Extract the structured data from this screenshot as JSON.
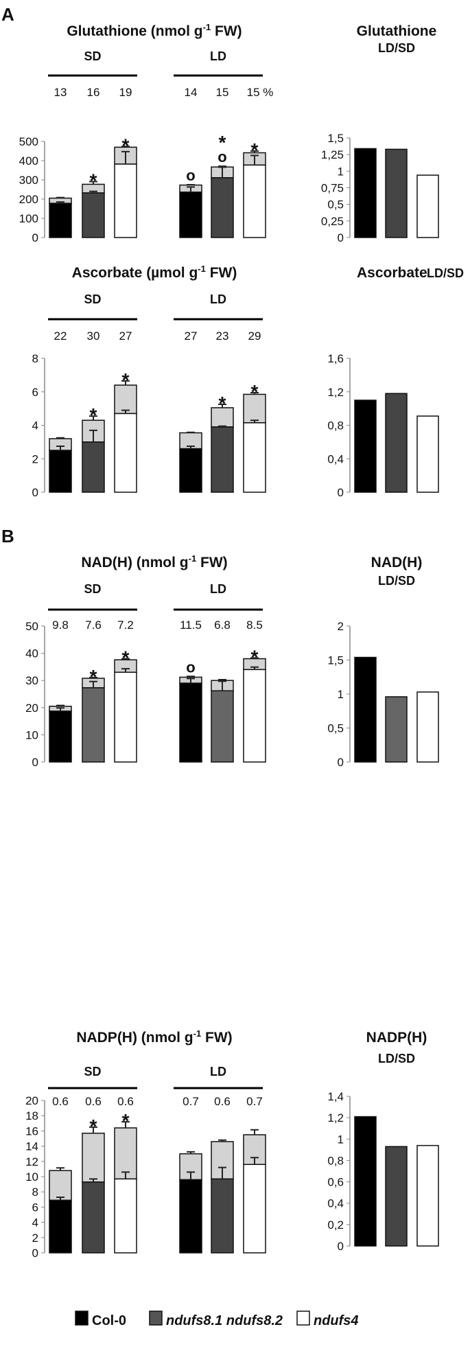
{
  "panels": [
    {
      "label": "A"
    },
    {
      "label": "B"
    }
  ],
  "legend": [
    {
      "name": "Col-0",
      "color": "#000000",
      "italic": false
    },
    {
      "name": "ndufs8.1 ndufs8.2",
      "color": "#555555",
      "italic": true
    },
    {
      "name": "ndufs4",
      "color": "#ffffff",
      "italic": true
    }
  ],
  "colors": {
    "oxidized_top": "#d3d3d3",
    "genotypes": [
      "#000000",
      "#454545",
      "#ffffff"
    ],
    "nad_mutant": "#666666"
  },
  "chart_data": [
    {
      "type": "bar",
      "stacked": true,
      "title": "Glutathione (nmol g-1 FW)",
      "title_main": "Glutathione (nmol g",
      "title_sup": "-1",
      "title_end": " FW)",
      "groups": [
        "SD",
        "LD"
      ],
      "group_annotations": [
        [
          "13",
          "16",
          "19"
        ],
        [
          "14",
          "15",
          "15 %"
        ]
      ],
      "ylim": [
        0,
        500
      ],
      "yticks": [
        "0",
        "100",
        "200",
        "300",
        "400",
        "500"
      ],
      "ytick_values": [
        0,
        100,
        200,
        300,
        400,
        500
      ],
      "series": [
        {
          "group": "SD",
          "bottom": [
            178,
            232,
            382
          ],
          "total": [
            205,
            277,
            470
          ],
          "bottom_err": [
            7,
            8,
            65
          ],
          "total_err": [
            3,
            14,
            4
          ]
        },
        {
          "group": "LD",
          "bottom": [
            236,
            311,
            377
          ],
          "total": [
            273,
            367,
            441
          ],
          "bottom_err": [
            27,
            55,
            50
          ],
          "total_err": [
            2,
            4,
            9
          ]
        }
      ],
      "markers": [
        [
          "",
          "*",
          "*"
        ],
        [
          "o",
          "* o",
          "*"
        ]
      ],
      "ratio": {
        "title": "Glutathione",
        "subtitle": "LD/SD",
        "values": [
          1.34,
          1.33,
          0.94
        ],
        "ylim": [
          0,
          1.5
        ],
        "yticks": [
          "0",
          "0,25",
          "0,5",
          "0,75",
          "1",
          "1,25",
          "1,5"
        ],
        "ytick_values": [
          0,
          0.25,
          0.5,
          0.75,
          1,
          1.25,
          1.5
        ]
      }
    },
    {
      "type": "bar",
      "stacked": true,
      "title": "Ascorbate (µmol g-1 FW)",
      "title_main": "Ascorbate (µmol g",
      "title_sup": "-1",
      "title_end": " FW)",
      "groups": [
        "SD",
        "LD"
      ],
      "group_annotations": [
        [
          "22",
          "30",
          "27"
        ],
        [
          "27",
          "23",
          "29"
        ]
      ],
      "ylim": [
        0,
        8
      ],
      "yticks": [
        "0",
        "2",
        "4",
        "6",
        "8"
      ],
      "ytick_values": [
        0,
        2,
        4,
        6,
        8
      ],
      "series": [
        {
          "group": "SD",
          "bottom": [
            2.5,
            3.0,
            4.7
          ],
          "total": [
            3.2,
            4.3,
            6.4
          ],
          "bottom_err": [
            0.25,
            0.7,
            0.2
          ],
          "total_err": [
            0.05,
            0.25,
            0.25
          ]
        },
        {
          "group": "LD",
          "bottom": [
            2.6,
            3.9,
            4.15
          ],
          "total": [
            3.55,
            5.05,
            5.85
          ],
          "bottom_err": [
            0.15,
            0.05,
            0.15
          ],
          "total_err": [
            0.03,
            0.2,
            0.1
          ]
        }
      ],
      "markers": [
        [
          "",
          "*",
          "*"
        ],
        [
          "",
          "*",
          "*"
        ]
      ],
      "ratio": {
        "title": "Ascorbate",
        "subtitle": "LD/SD",
        "values": [
          1.1,
          1.18,
          0.91
        ],
        "ylim": [
          0,
          1.6
        ],
        "yticks": [
          "0",
          "0,4",
          "0,8",
          "1,2",
          "1,6"
        ],
        "ytick_values": [
          0,
          0.4,
          0.8,
          1.2,
          1.6
        ]
      }
    },
    {
      "type": "bar",
      "stacked": true,
      "title": "NAD(H) (nmol g-1 FW)",
      "title_main": "NAD(H) (nmol g",
      "title_sup": "-1",
      "title_end": " FW)",
      "groups": [
        "SD",
        "LD"
      ],
      "group_annotations": [
        [
          "9.8",
          "7.6",
          "7.2"
        ],
        [
          "11.5",
          "6.8",
          "8.5"
        ]
      ],
      "ylim": [
        0,
        50
      ],
      "yticks": [
        "0",
        "10",
        "20",
        "30",
        "40",
        "50"
      ],
      "ytick_values": [
        0,
        10,
        20,
        30,
        40,
        50
      ],
      "series": [
        {
          "group": "SD",
          "bottom": [
            18.7,
            27.3,
            33
          ],
          "total": [
            20.5,
            30.8,
            37.6
          ],
          "bottom_err": [
            1.2,
            2.3,
            1.3
          ],
          "total_err": [
            0.3,
            0.3,
            0.4
          ]
        },
        {
          "group": "LD",
          "bottom": [
            29,
            26.2,
            34
          ],
          "total": [
            31.2,
            30,
            38
          ],
          "bottom_err": [
            1.7,
            3.5,
            0.9
          ],
          "total_err": [
            0.3,
            0.3,
            0.3
          ]
        }
      ],
      "markers": [
        [
          "",
          "*",
          "*"
        ],
        [
          "o",
          "",
          "*"
        ]
      ],
      "ratio": {
        "title": "NAD(H)",
        "subtitle": "LD/SD",
        "values": [
          1.54,
          0.96,
          1.03
        ],
        "ylim": [
          0,
          2
        ],
        "yticks": [
          "0",
          "0,5",
          "1",
          "1,5",
          "2"
        ],
        "ytick_values": [
          0,
          0.5,
          1,
          1.5,
          2
        ]
      }
    },
    {
      "type": "bar",
      "stacked": true,
      "title": "NADP(H) (nmol g-1 FW)",
      "title_main": "NADP(H) (nmol g",
      "title_sup": "-1",
      "title_end": " FW)",
      "groups": [
        "SD",
        "LD"
      ],
      "group_annotations": [
        [
          "0.6",
          "0.6",
          "0.6"
        ],
        [
          "0.7",
          "0.6",
          "0.7"
        ]
      ],
      "ylim": [
        0,
        20
      ],
      "yticks": [
        "0",
        "2",
        "4",
        "6",
        "8",
        "10",
        "12",
        "14",
        "16",
        "18",
        "20"
      ],
      "ytick_values": [
        0,
        2,
        4,
        6,
        8,
        10,
        12,
        14,
        16,
        18,
        20
      ],
      "series": [
        {
          "group": "SD",
          "bottom": [
            6.9,
            9.3,
            9.7
          ],
          "total": [
            10.8,
            15.7,
            16.4
          ],
          "bottom_err": [
            0.4,
            0.4,
            0.9
          ],
          "total_err": [
            0.35,
            0.8,
            0.8
          ]
        },
        {
          "group": "LD",
          "bottom": [
            9.6,
            9.7,
            11.6
          ],
          "total": [
            13,
            14.6,
            15.5
          ],
          "bottom_err": [
            1.0,
            1.5,
            0.9
          ],
          "total_err": [
            0.25,
            0.2,
            0.65
          ]
        }
      ],
      "markers": [
        [
          "",
          "*",
          "*"
        ],
        [
          "",
          "",
          ""
        ]
      ],
      "ratio": {
        "title": "NADP(H)",
        "subtitle": "LD/SD",
        "values": [
          1.21,
          0.93,
          0.94
        ],
        "ylim": [
          0,
          1.4
        ],
        "yticks": [
          "0",
          "0,2",
          "0,4",
          "0,6",
          "0,8",
          "1",
          "1,2",
          "1,4"
        ],
        "ytick_values": [
          0,
          0.2,
          0.4,
          0.6,
          0.8,
          1,
          1.2,
          1.4
        ]
      }
    }
  ]
}
